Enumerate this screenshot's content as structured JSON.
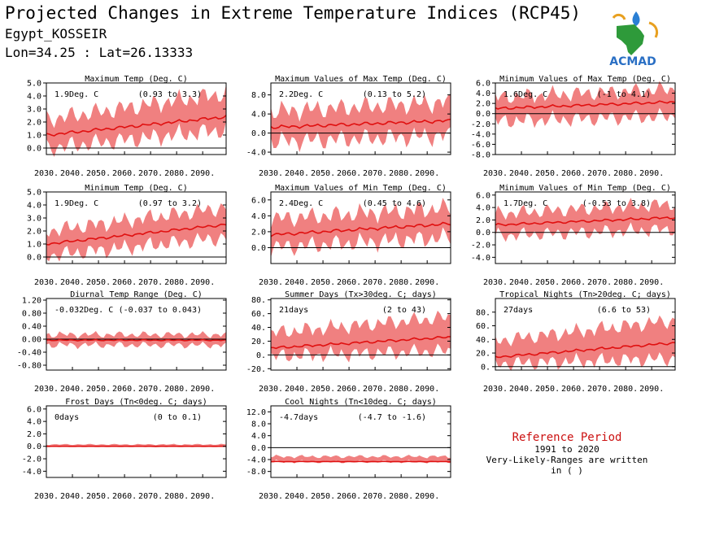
{
  "header": {
    "title": "Projected Changes in Extreme Temperature Indices (RCP45)",
    "station": "Egypt_KOSSEIR",
    "coords": "Lon=34.25 : Lat=26.13333",
    "logo_text": "ACMAD"
  },
  "reference": {
    "title": "Reference Period",
    "years": "1991 to 2020",
    "note": "Very-Likely-Ranges are written in ( )"
  },
  "colors": {
    "band": "#f08080",
    "line": "#e01010",
    "axis": "#000000",
    "ref_title": "#cc1111"
  },
  "chart_data": [
    {
      "id": "txmean",
      "type": "area",
      "title": "Maximum Temp (Deg. C)",
      "stat": "1.9Deg. C",
      "range": "(0.93 to 3.3)",
      "xlim": [
        2030,
        2099
      ],
      "xticks": [
        "2030.",
        "2040.",
        "2050.",
        "2060.",
        "2070.",
        "2080.",
        "2090."
      ],
      "ylim": [
        -0.5,
        5.0
      ],
      "yticks": [
        "5.0",
        "4.0",
        "3.0",
        "2.0",
        "1.0",
        "0.0"
      ],
      "series": [
        {
          "median_start": 1.0,
          "median_end": 2.4,
          "low_start": 0.0,
          "low_end": 1.4,
          "high_start": 2.2,
          "high_end": 4.2
        }
      ]
    },
    {
      "id": "txx",
      "type": "area",
      "title": "Maximum Values of Max Temp (Deg. C)",
      "stat": "2.2Deg. C",
      "range": "(0.13 to 5.2)",
      "xlim": [
        2030,
        2099
      ],
      "xticks": [
        "2030.",
        "2040.",
        "2050.",
        "2060.",
        "2070.",
        "2080.",
        "2090."
      ],
      "ylim": [
        -4.5,
        10.5
      ],
      "yticks": [
        "8.0",
        "4.0",
        "0.0",
        "-4.0"
      ],
      "series": [
        {
          "median_start": 1.2,
          "median_end": 2.6,
          "low_start": -1.8,
          "low_end": -0.5,
          "high_start": 4.5,
          "high_end": 6.5
        }
      ]
    },
    {
      "id": "txn",
      "type": "area",
      "title": "Minimum Values of Max Temp (Deg. C)",
      "stat": "1.6Deg. C",
      "range": "(-1 to 4.1)",
      "xlim": [
        2030,
        2099
      ],
      "xticks": [
        "2030.",
        "2040.",
        "2050.",
        "2060.",
        "2070.",
        "2080.",
        "2090."
      ],
      "ylim": [
        -8.0,
        6.0
      ],
      "yticks": [
        "6.0",
        "4.0",
        "2.0",
        "0.0",
        "-2.0",
        "-4.0",
        "-6.0",
        "-8.0"
      ],
      "series": [
        {
          "median_start": 1.0,
          "median_end": 2.3,
          "low_start": -1.5,
          "low_end": -0.5,
          "high_start": 3.2,
          "high_end": 4.8
        }
      ]
    },
    {
      "id": "tnmean",
      "type": "area",
      "title": "Minimum Temp (Deg. C)",
      "stat": "1.9Deg. C",
      "range": "(0.97 to 3.2)",
      "xlim": [
        2030,
        2099
      ],
      "xticks": [
        "2030.",
        "2040.",
        "2050.",
        "2060.",
        "2070.",
        "2080.",
        "2090."
      ],
      "ylim": [
        -0.5,
        5.0
      ],
      "yticks": [
        "5.0",
        "4.0",
        "3.0",
        "2.0",
        "1.0",
        "0.0"
      ],
      "series": [
        {
          "median_start": 1.0,
          "median_end": 2.5,
          "low_start": 0.1,
          "low_end": 1.5,
          "high_start": 2.0,
          "high_end": 3.8
        }
      ]
    },
    {
      "id": "tnx",
      "type": "area",
      "title": "Maximum Values of Min Temp (Deg. C)",
      "stat": "2.4Deg. C",
      "range": "(0.45 to 4.6)",
      "xlim": [
        2030,
        2099
      ],
      "xticks": [
        "2030.",
        "2040.",
        "2050.",
        "2060.",
        "2070.",
        "2080.",
        "2090."
      ],
      "ylim": [
        -2.0,
        7.0
      ],
      "yticks": [
        "6.0",
        "4.0",
        "2.0",
        "0.0"
      ],
      "series": [
        {
          "median_start": 1.6,
          "median_end": 3.0,
          "low_start": 0.0,
          "low_end": 1.3,
          "high_start": 3.6,
          "high_end": 5.0
        }
      ]
    },
    {
      "id": "tnn",
      "type": "area",
      "title": "Minimum Values of Min Temp (Deg. C)",
      "stat": "1.7Deg. C",
      "range": "(-0.53 to 3.8)",
      "xlim": [
        2030,
        2099
      ],
      "xticks": [
        "2030.",
        "2040.",
        "2050.",
        "2060.",
        "2070.",
        "2080.",
        "2090."
      ],
      "ylim": [
        -5.0,
        6.5
      ],
      "yticks": [
        "6.0",
        "4.0",
        "2.0",
        "0.0",
        "-2.0",
        "-4.0"
      ],
      "series": [
        {
          "median_start": 1.2,
          "median_end": 2.4,
          "low_start": -0.5,
          "low_end": 0.5,
          "high_start": 3.0,
          "high_end": 4.6
        }
      ]
    },
    {
      "id": "dtr",
      "type": "area",
      "title": "Diurnal Temp Range (Deg. C)",
      "stat": "-0.032Deg. C",
      "range": "(-0.037 to 0.043)",
      "xlim": [
        2030,
        2099
      ],
      "xticks": [
        "2030.",
        "2040.",
        "2050.",
        "2060.",
        "2070.",
        "2080.",
        "2090."
      ],
      "ylim": [
        -0.95,
        1.25
      ],
      "yticks": [
        "1.20",
        "0.80",
        "0.40",
        "0.00",
        "-0.40",
        "-0.80"
      ],
      "series": [
        {
          "median_start": -0.03,
          "median_end": -0.03,
          "low_start": -0.18,
          "low_end": -0.18,
          "high_start": 0.14,
          "high_end": 0.14
        }
      ]
    },
    {
      "id": "su30",
      "type": "area",
      "title": "Summer Days (Tx>30deg. C; days)",
      "stat": "21days",
      "range": "(2 to 43)",
      "xlim": [
        2030,
        2099
      ],
      "xticks": [
        "2030.",
        "2040.",
        "2050.",
        "2060.",
        "2070.",
        "2080.",
        "2090."
      ],
      "ylim": [
        -22,
        82
      ],
      "yticks": [
        "80.",
        "60.",
        "40.",
        "20.",
        "0.",
        "-20."
      ],
      "series": [
        {
          "median_start": 10,
          "median_end": 26,
          "low_start": -2,
          "low_end": 6,
          "high_start": 32,
          "high_end": 55
        }
      ]
    },
    {
      "id": "tr20",
      "type": "area",
      "title": "Tropical Nights (Tn>20deg. C; days)",
      "stat": "27days",
      "range": "(6.6 to 53)",
      "xlim": [
        2030,
        2099
      ],
      "xticks": [
        "2030.",
        "2040.",
        "2050.",
        "2060.",
        "2070.",
        "2080.",
        "2090."
      ],
      "ylim": [
        -5,
        100
      ],
      "yticks": [
        "80.",
        "60.",
        "40.",
        "20.",
        "0."
      ],
      "series": [
        {
          "median_start": 14,
          "median_end": 35,
          "low_start": 4,
          "low_end": 12,
          "high_start": 38,
          "high_end": 68
        }
      ]
    },
    {
      "id": "fd0",
      "type": "area",
      "title": "Frost Days (Tn<0deg. C; days)",
      "stat": "0days",
      "range": "(0 to 0.1)",
      "xlim": [
        2030,
        2099
      ],
      "xticks": [
        "2030.",
        "2040.",
        "2050.",
        "2060.",
        "2070.",
        "2080.",
        "2090."
      ],
      "ylim": [
        -5.0,
        6.5
      ],
      "yticks": [
        "6.0",
        "4.0",
        "2.0",
        "0.0",
        "-2.0",
        "-4.0"
      ],
      "series": [
        {
          "median_start": 0,
          "median_end": 0,
          "low_start": 0,
          "low_end": 0,
          "high_start": 0.3,
          "high_end": 0.3
        }
      ]
    },
    {
      "id": "tn10",
      "type": "area",
      "title": "Cool Nights (Tn<10deg. C; days)",
      "stat": "-4.7days",
      "range": "(-4.7 to -1.6)",
      "xlim": [
        2030,
        2099
      ],
      "xticks": [
        "2030.",
        "2040.",
        "2050.",
        "2060.",
        "2070.",
        "2080.",
        "2090."
      ],
      "ylim": [
        -10.0,
        14.0
      ],
      "yticks": [
        "12.0",
        "8.0",
        "4.0",
        "0.0",
        "-4.0",
        "-8.0"
      ],
      "series": [
        {
          "median_start": -4.7,
          "median_end": -4.7,
          "low_start": -4.7,
          "low_end": -4.7,
          "high_start": -3.0,
          "high_end": -3.0
        }
      ]
    }
  ]
}
